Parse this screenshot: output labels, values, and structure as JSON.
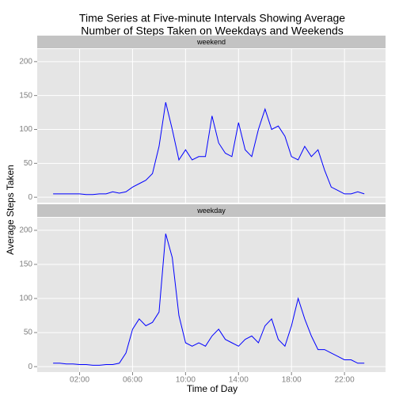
{
  "chart_data": {
    "type": "line",
    "title": [
      "Time Series at Five-minute Intervals Showing Average",
      "Number of Steps Taken on  Weekdays and Weekends"
    ],
    "xlabel": "Time of Day",
    "ylabel": "Average Steps Taken",
    "x": [
      0,
      0.5,
      1,
      1.5,
      2,
      2.5,
      3,
      3.5,
      4,
      4.5,
      5,
      5.5,
      6,
      6.5,
      7,
      7.5,
      8,
      8.5,
      9,
      9.5,
      10,
      10.5,
      11,
      11.5,
      12,
      12.5,
      13,
      13.5,
      14,
      14.5,
      15,
      15.5,
      16,
      16.5,
      17,
      17.5,
      18,
      18.5,
      19,
      19.5,
      20,
      20.5,
      21,
      21.5,
      22,
      22.5,
      23,
      23.5
    ],
    "series": [
      {
        "name": "weekend",
        "color": "#0000ff",
        "values": [
          5,
          5,
          5,
          5,
          5,
          4,
          4,
          5,
          5,
          8,
          6,
          8,
          15,
          20,
          25,
          35,
          75,
          140,
          100,
          55,
          70,
          55,
          60,
          60,
          120,
          80,
          65,
          60,
          110,
          70,
          60,
          100,
          130,
          100,
          105,
          90,
          60,
          55,
          75,
          60,
          70,
          40,
          15,
          10,
          5,
          5,
          8,
          5
        ]
      },
      {
        "name": "weekday",
        "color": "#0000ff",
        "values": [
          5,
          5,
          4,
          4,
          3,
          3,
          2,
          2,
          3,
          3,
          5,
          20,
          55,
          70,
          60,
          65,
          80,
          195,
          160,
          75,
          35,
          30,
          35,
          30,
          45,
          55,
          40,
          35,
          30,
          40,
          45,
          35,
          60,
          70,
          40,
          30,
          60,
          100,
          70,
          45,
          25,
          25,
          20,
          15,
          10,
          10,
          5,
          5
        ]
      }
    ],
    "xlim": [
      -1.2,
      25.1
    ],
    "xticks": [
      {
        "value": 2,
        "label": "02:00"
      },
      {
        "value": 6,
        "label": "06:00"
      },
      {
        "value": 10,
        "label": "10:00"
      },
      {
        "value": 14,
        "label": "14:00"
      },
      {
        "value": 18,
        "label": "18:00"
      },
      {
        "value": 22,
        "label": "22:00"
      }
    ],
    "ylim": [
      -8,
      218.5
    ],
    "yticks": [
      0,
      50,
      100,
      150,
      200
    ],
    "grid": true
  }
}
